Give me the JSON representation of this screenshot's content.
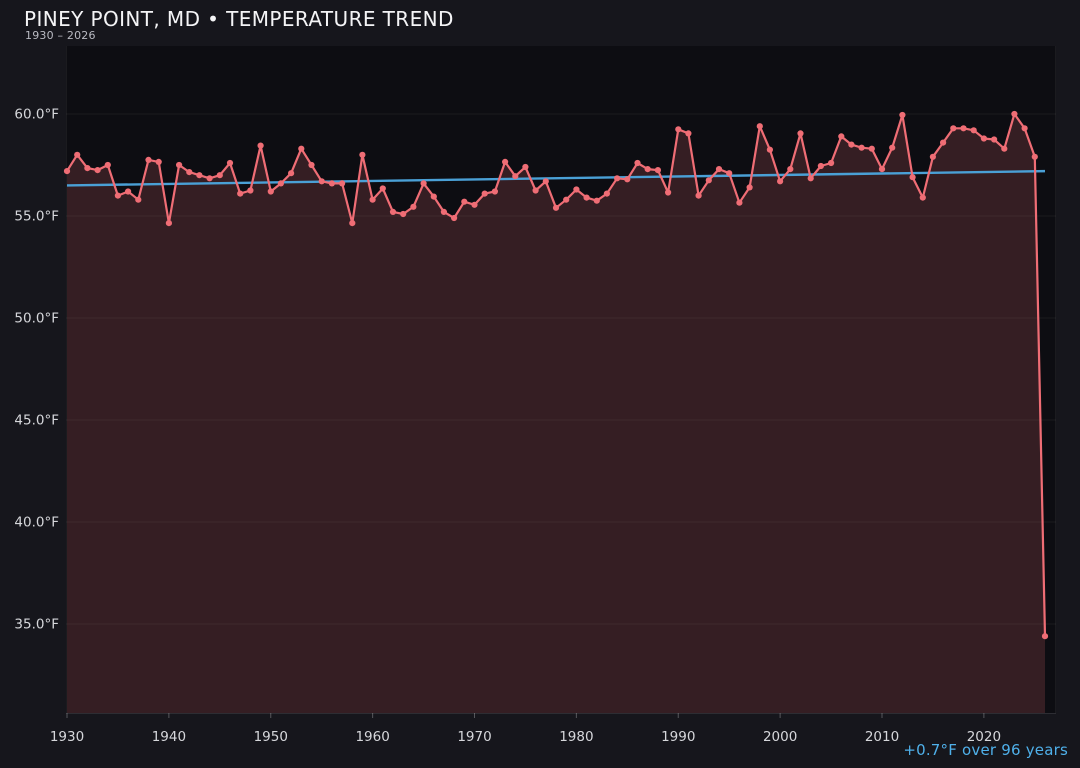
{
  "header": {
    "title": "PINEY POINT, MD • TEMPERATURE TREND",
    "subtitle": "1930 – 2026"
  },
  "annotation": {
    "trend_text": "+0.7°F over 96 years"
  },
  "colors": {
    "background": "#16161c",
    "plot_background": "#0d0d12",
    "series_line": "#ef6d75",
    "series_fill": "rgba(239,109,117,0.18)",
    "trend_line": "#4aa0d6",
    "annotation_text": "#4fb0ea",
    "tick_text": "#d6d7db",
    "gridline": "rgba(255,255,255,0.055)",
    "axis_line": "rgba(255,255,255,0.10)",
    "tick_mark": "rgba(255,255,255,0.28)"
  },
  "chart_data": {
    "type": "line",
    "title": "PINEY POINT, MD • TEMPERATURE TREND",
    "subtitle": "1930 – 2026",
    "xlabel": "",
    "ylabel": "",
    "unit": "°F",
    "grid": "horizontal",
    "legend_position": "none",
    "xlim": [
      1930,
      2027
    ],
    "ylim": [
      30.6,
      62.4
    ],
    "y_ticks": {
      "values": [
        60,
        55,
        50,
        45,
        40,
        35
      ],
      "labels": [
        "60.0°F",
        "55.0°F",
        "50.0°F",
        "45.0°F",
        "40.0°F",
        "35.0°F"
      ]
    },
    "x_ticks": {
      "values": [
        1930,
        1940,
        1950,
        1960,
        1970,
        1980,
        1990,
        2000,
        2010,
        2020
      ],
      "labels": [
        "1930",
        "1940",
        "1950",
        "1960",
        "1970",
        "1980",
        "1990",
        "2000",
        "2010",
        "2020"
      ]
    },
    "years": [
      1930,
      1931,
      1932,
      1933,
      1934,
      1935,
      1936,
      1937,
      1938,
      1939,
      1940,
      1941,
      1942,
      1943,
      1944,
      1945,
      1946,
      1947,
      1948,
      1949,
      1950,
      1951,
      1952,
      1953,
      1954,
      1955,
      1956,
      1957,
      1958,
      1959,
      1960,
      1961,
      1962,
      1963,
      1964,
      1965,
      1966,
      1967,
      1968,
      1969,
      1970,
      1971,
      1972,
      1973,
      1974,
      1975,
      1976,
      1977,
      1978,
      1979,
      1980,
      1981,
      1982,
      1983,
      1984,
      1985,
      1986,
      1987,
      1988,
      1989,
      1990,
      1991,
      1992,
      1993,
      1994,
      1995,
      1996,
      1997,
      1998,
      1999,
      2000,
      2001,
      2002,
      2003,
      2004,
      2005,
      2006,
      2007,
      2008,
      2009,
      2010,
      2011,
      2012,
      2013,
      2014,
      2015,
      2016,
      2017,
      2018,
      2019,
      2020,
      2021,
      2022,
      2023,
      2024,
      2025,
      2026
    ],
    "series": [
      {
        "name": "annual mean temperature (°F)",
        "color": "#ef6d75",
        "values": [
          57.2,
          58.0,
          57.35,
          57.25,
          57.5,
          56.0,
          56.2,
          55.8,
          57.75,
          57.65,
          54.65,
          57.5,
          57.15,
          57.0,
          56.85,
          57.0,
          57.6,
          56.1,
          56.25,
          58.45,
          56.2,
          56.6,
          57.1,
          58.3,
          57.5,
          56.7,
          56.6,
          56.6,
          54.65,
          58.0,
          55.8,
          56.35,
          55.2,
          55.1,
          55.45,
          56.6,
          55.95,
          55.2,
          54.9,
          55.7,
          55.55,
          56.1,
          56.2,
          57.65,
          56.95,
          57.4,
          56.25,
          56.7,
          55.4,
          55.8,
          56.3,
          55.9,
          55.75,
          56.1,
          56.85,
          56.8,
          57.6,
          57.3,
          57.25,
          56.15,
          59.25,
          59.05,
          56.0,
          56.75,
          57.3,
          57.1,
          55.65,
          56.4,
          59.4,
          58.25,
          56.7,
          57.3,
          59.05,
          56.85,
          57.45,
          57.6,
          58.9,
          58.5,
          58.35,
          58.3,
          57.3,
          58.35,
          59.95,
          56.9,
          55.9,
          57.9,
          58.6,
          59.3,
          59.3,
          59.2,
          58.8,
          58.75,
          58.3,
          60.0,
          59.3,
          57.9,
          34.4
        ]
      },
      {
        "name": "linear trend",
        "color": "#4aa0d6",
        "start": {
          "year": 1930,
          "value": 56.5
        },
        "end": {
          "year": 2026,
          "value": 57.2
        }
      }
    ],
    "annotations": [
      "+0.7°F over 96 years"
    ]
  }
}
